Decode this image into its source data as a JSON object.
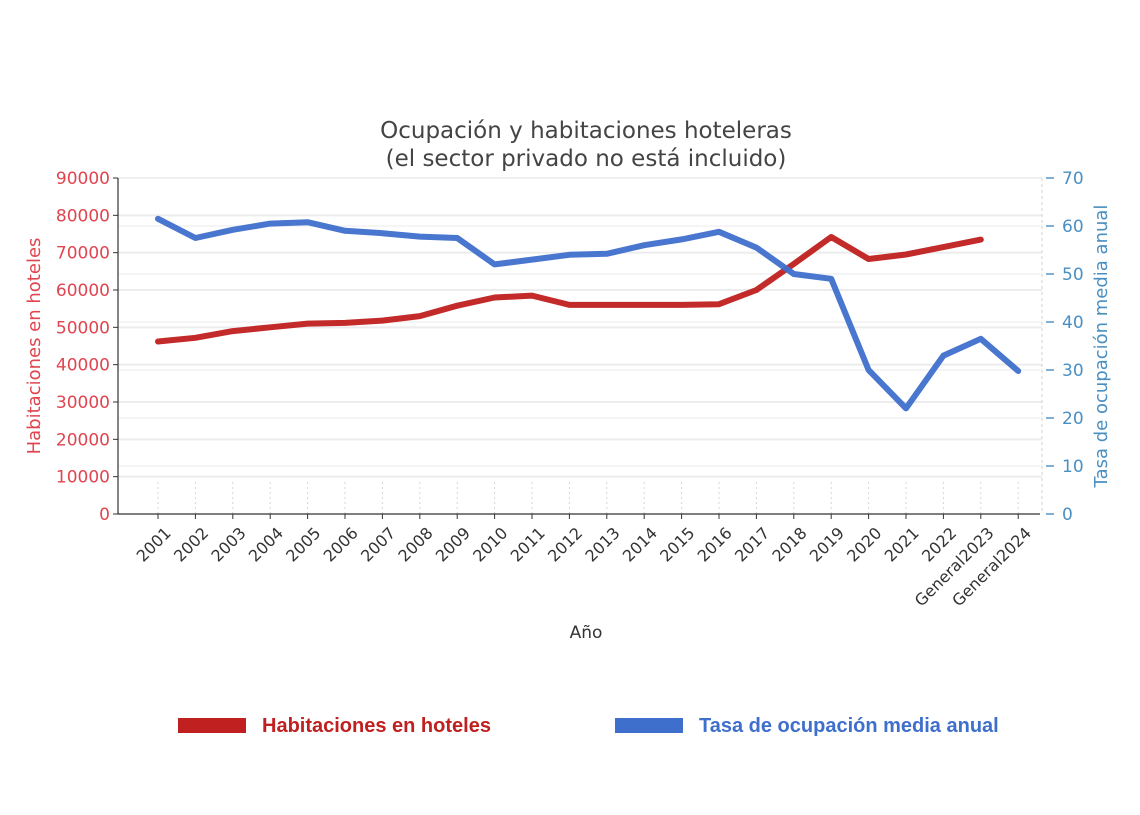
{
  "chart_data": {
    "type": "line",
    "title": "Ocupación y habitaciones hoteleras",
    "subtitle": "(el sector privado no está incluido)",
    "xlabel": "Año",
    "ylabel_left": "Habitaciones en hoteles",
    "ylabel_right": "Tasa de ocupación media anual",
    "ylim_left": [
      0,
      90000
    ],
    "ylim_right": [
      0,
      70
    ],
    "yticks_left": [
      0,
      10000,
      20000,
      30000,
      40000,
      50000,
      60000,
      70000,
      80000,
      90000
    ],
    "yticks_right": [
      0,
      10,
      20,
      30,
      40,
      50,
      60,
      70
    ],
    "categories": [
      "2001",
      "2002",
      "2003",
      "2004",
      "2005",
      "2006",
      "2007",
      "2008",
      "2009",
      "2010",
      "2011",
      "2012",
      "2013",
      "2014",
      "2015",
      "2016",
      "2017",
      "2018",
      "2019",
      "2020",
      "2021",
      "2022",
      "General2023",
      "General2024"
    ],
    "grid": true,
    "legend_position": "bottom",
    "series": [
      {
        "name": "Habitaciones en hoteles",
        "axis": "left",
        "color": "#c0201f",
        "values": [
          46200,
          47200,
          49000,
          50000,
          51000,
          51200,
          51800,
          53000,
          55800,
          58000,
          58500,
          56000,
          56000,
          56000,
          56000,
          56200,
          60000,
          67000,
          74200,
          68300,
          69500,
          71500,
          73500,
          null
        ]
      },
      {
        "name": "Tasa de ocupación media anual",
        "axis": "right",
        "color": "#3f6fcc",
        "values": [
          61.5,
          57.5,
          59.2,
          60.5,
          60.8,
          59.0,
          58.5,
          57.8,
          57.5,
          52.0,
          53.0,
          54.0,
          54.2,
          56.0,
          57.2,
          58.8,
          55.5,
          50.0,
          49.0,
          30.0,
          22.0,
          33.0,
          36.5,
          29.8
        ]
      }
    ]
  }
}
